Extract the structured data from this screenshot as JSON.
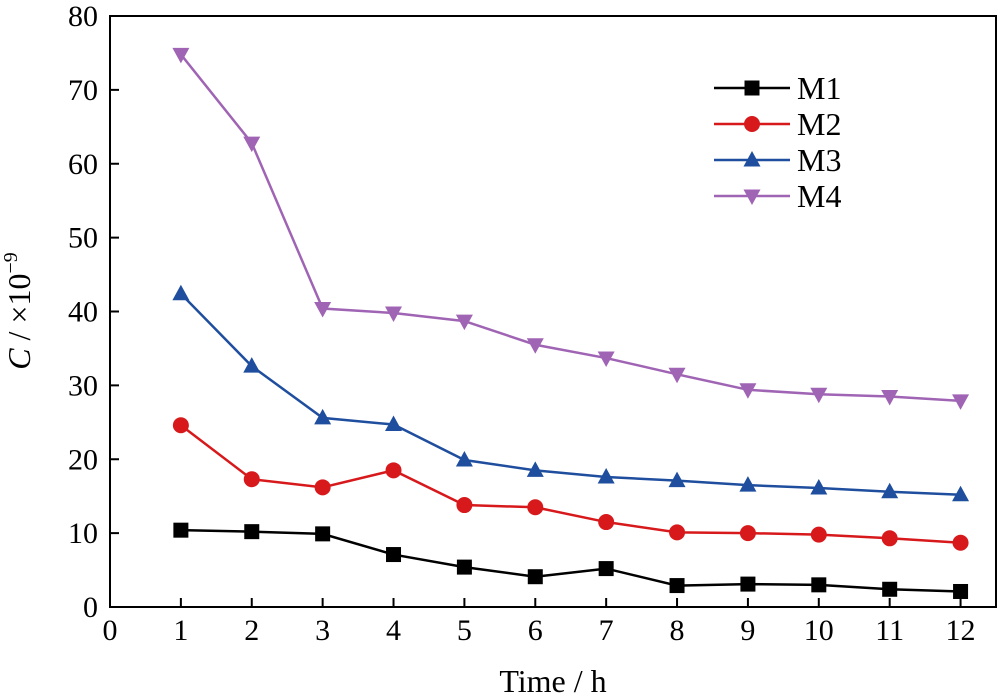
{
  "chart_data": {
    "type": "line",
    "x": [
      1,
      2,
      3,
      4,
      5,
      6,
      7,
      8,
      9,
      10,
      11,
      12
    ],
    "xlabel": "Time / h",
    "ylabel_main": "C",
    "ylabel_unit": " / ×10",
    "ylabel_exp": "−9",
    "xlim": [
      0,
      12.5
    ],
    "ylim": [
      0,
      80
    ],
    "xticks": [
      "0",
      "1",
      "2",
      "3",
      "4",
      "5",
      "6",
      "7",
      "8",
      "9",
      "10",
      "11",
      "12"
    ],
    "yticks": [
      "0",
      "10",
      "20",
      "30",
      "40",
      "50",
      "60",
      "70",
      "80"
    ],
    "grid": false,
    "legend_position": "top-right",
    "series": [
      {
        "name": "M1",
        "color": "#000000",
        "marker": "square",
        "values": [
          10.4,
          10.2,
          9.9,
          7.1,
          5.4,
          4.1,
          5.2,
          2.9,
          3.1,
          3.0,
          2.4,
          2.1
        ]
      },
      {
        "name": "M2",
        "color": "#d7191c",
        "marker": "circle",
        "values": [
          24.6,
          17.3,
          16.2,
          18.5,
          13.8,
          13.5,
          11.5,
          10.1,
          10.0,
          9.8,
          9.3,
          8.7
        ]
      },
      {
        "name": "M3",
        "color": "#1f4e9e",
        "marker": "triangle-up",
        "values": [
          42.4,
          32.6,
          25.6,
          24.7,
          19.9,
          18.5,
          17.6,
          17.1,
          16.5,
          16.1,
          15.6,
          15.2
        ]
      },
      {
        "name": "M4",
        "color": "#a064b4",
        "marker": "triangle-down",
        "values": [
          74.8,
          62.8,
          40.4,
          39.8,
          38.7,
          35.5,
          33.7,
          31.5,
          29.4,
          28.8,
          28.5,
          27.9
        ]
      }
    ]
  }
}
